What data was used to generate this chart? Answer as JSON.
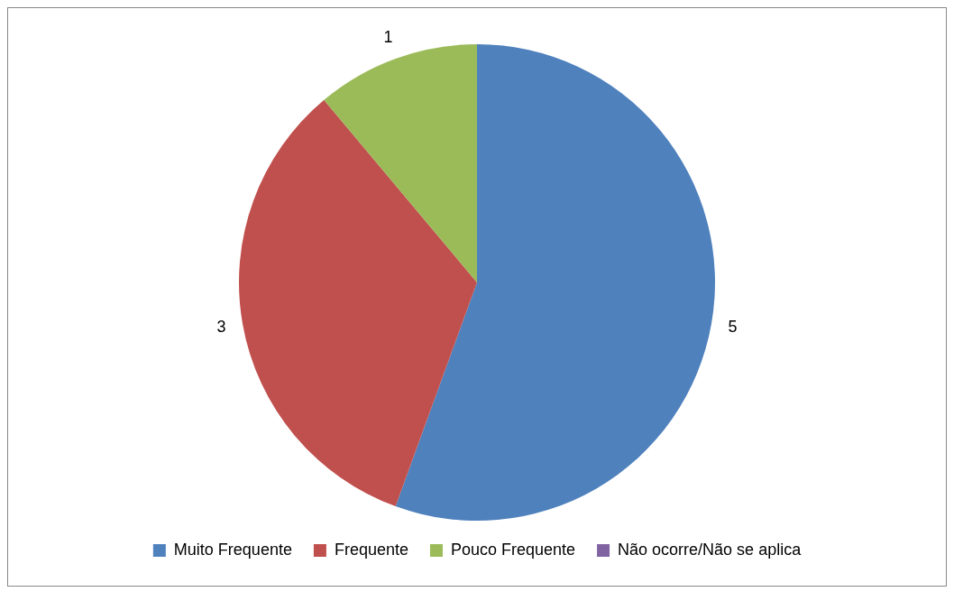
{
  "chart_data": {
    "type": "pie",
    "categories": [
      "Muito Frequente",
      "Frequente",
      "Pouco Frequente",
      "Não ocorre/Não se aplica"
    ],
    "values": [
      5,
      3,
      1,
      0
    ],
    "colors": [
      "#4f81bd",
      "#c0504d",
      "#9bbb59",
      "#8064a2"
    ],
    "value_labels": [
      "5",
      "3",
      "1",
      null
    ],
    "legend": "bottom"
  }
}
